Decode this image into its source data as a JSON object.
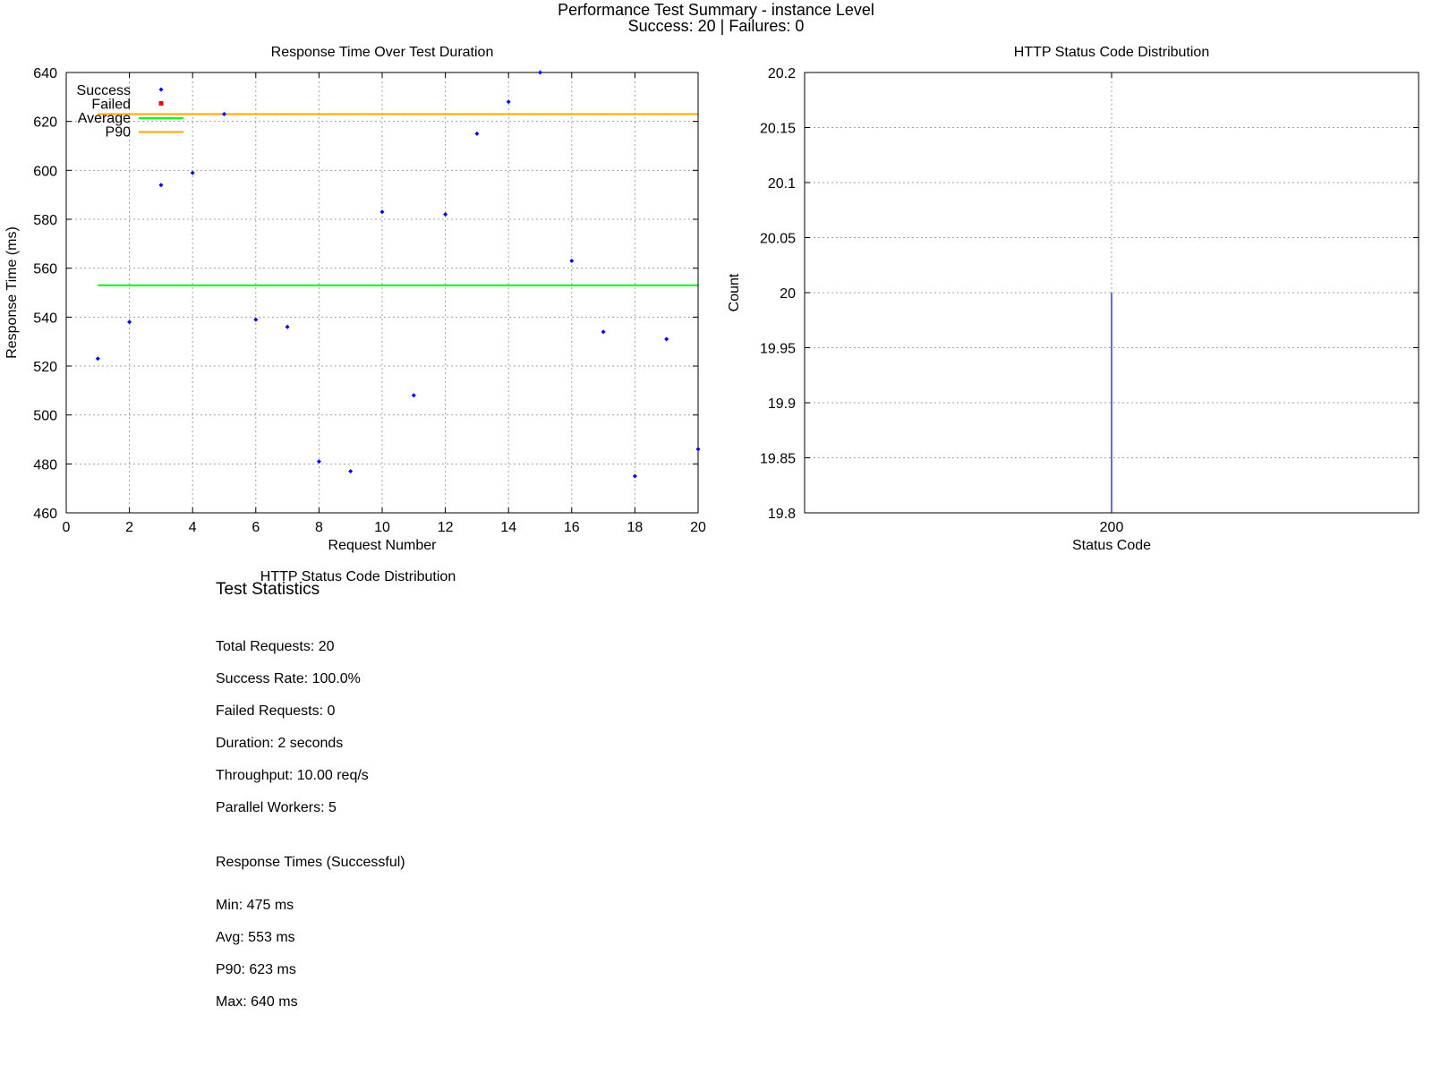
{
  "header": {
    "title": "Performance Test Summary - instance Level",
    "subtitle": "Success: 20 | Failures: 0"
  },
  "colors": {
    "success": "#0000ff",
    "failed": "#ff0000",
    "average": "#00ff00",
    "p90": "#ffa500",
    "bar": "#0000ff",
    "grid": "#a0a0a0"
  },
  "chart_data": [
    {
      "type": "scatter",
      "title": "Response Time Over Test Duration",
      "xlabel": "Request Number",
      "ylabel": "Response Time (ms)",
      "xlim": [
        0,
        20
      ],
      "ylim": [
        460,
        640
      ],
      "xticks": [
        0,
        2,
        4,
        6,
        8,
        10,
        12,
        14,
        16,
        18,
        20
      ],
      "yticks": [
        460,
        480,
        500,
        520,
        540,
        560,
        580,
        600,
        620,
        640
      ],
      "grid": true,
      "legend_position": "top-left",
      "legend": [
        "Success",
        "Failed",
        "Average",
        "P90"
      ],
      "series": [
        {
          "name": "Success",
          "marker": "diamond",
          "points": [
            [
              1,
              523
            ],
            [
              2,
              538
            ],
            [
              3,
              594
            ],
            [
              4,
              599
            ],
            [
              5,
              623
            ],
            [
              6,
              539
            ],
            [
              7,
              536
            ],
            [
              8,
              481
            ],
            [
              9,
              477
            ],
            [
              10,
              583
            ],
            [
              11,
              508
            ],
            [
              12,
              582
            ],
            [
              13,
              615
            ],
            [
              14,
              628
            ],
            [
              15,
              640
            ],
            [
              16,
              563
            ],
            [
              17,
              534
            ],
            [
              18,
              475
            ],
            [
              19,
              531
            ],
            [
              20,
              486
            ]
          ]
        },
        {
          "name": "Failed",
          "marker": "square",
          "points": []
        }
      ],
      "reference_lines": [
        {
          "name": "Average",
          "y": 553,
          "x_range": [
            1,
            20
          ]
        },
        {
          "name": "P90",
          "y": 623,
          "x_range": [
            1,
            20
          ]
        }
      ]
    },
    {
      "type": "bar",
      "title": "HTTP Status Code Distribution",
      "xlabel": "Status Code",
      "ylabel": "Count",
      "categories": [
        "200"
      ],
      "values": [
        20
      ],
      "ylim": [
        19.8,
        20.2
      ],
      "yticks": [
        "19.8",
        "19.85",
        "19.9",
        "19.95",
        "20",
        "20.05",
        "20.1",
        "20.15",
        "20.2"
      ],
      "grid": true
    }
  ],
  "stats_panel": {
    "section_caption": "HTTP Status Code Distribution",
    "heading": "Test Statistics",
    "lines": [
      "Total Requests: 20",
      "Success Rate: 100.0%",
      "Failed Requests: 0",
      "Duration: 2 seconds",
      "Throughput: 10.00 req/s",
      "Parallel Workers: 5"
    ],
    "response_heading": "Response Times (Successful)",
    "response_lines": [
      "Min: 475 ms",
      "Avg: 553 ms",
      "P90: 623 ms",
      "Max: 640 ms"
    ]
  }
}
